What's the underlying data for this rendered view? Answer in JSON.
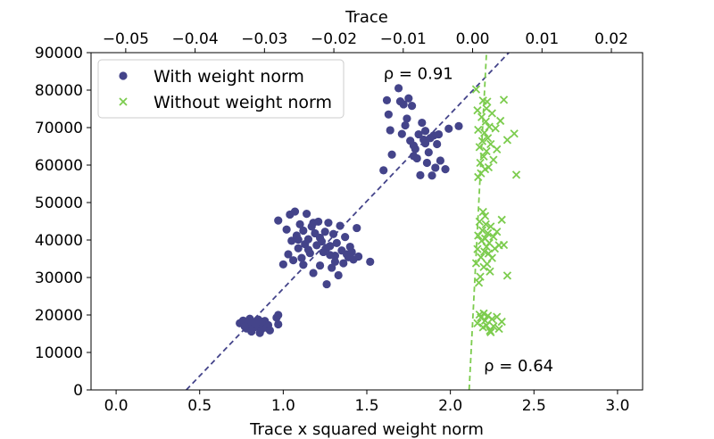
{
  "chart_data": {
    "type": "scatter",
    "xlabel": "Trace x squared weight norm",
    "x2label": "Trace",
    "ylabel": "",
    "xlim": [
      -0.15,
      3.15
    ],
    "x2lim": [
      -0.055,
      0.0245
    ],
    "ylim": [
      0,
      90000
    ],
    "xticks": [
      0.0,
      0.5,
      1.0,
      1.5,
      2.0,
      2.5,
      3.0
    ],
    "xtick_labels": [
      "0.0",
      "0.5",
      "1.0",
      "1.5",
      "2.0",
      "2.5",
      "3.0"
    ],
    "x2ticks": [
      -0.05,
      -0.04,
      -0.03,
      -0.02,
      -0.01,
      0.0,
      0.01,
      0.02
    ],
    "x2tick_labels": [
      "−0.05",
      "−0.04",
      "−0.03",
      "−0.02",
      "−0.01",
      "0.00",
      "0.01",
      "0.02"
    ],
    "yticks": [
      0,
      10000,
      20000,
      30000,
      40000,
      50000,
      60000,
      70000,
      80000,
      90000
    ],
    "ytick_labels": [
      "0",
      "10000",
      "20000",
      "30000",
      "40000",
      "50000",
      "60000",
      "70000",
      "80000",
      "90000"
    ],
    "grid": false,
    "legend_position": "top-left",
    "series": [
      {
        "name": "With weight norm",
        "marker": "circle",
        "axis": "bottom",
        "color": "#44448a",
        "points": [
          [
            0.74,
            17800
          ],
          [
            0.76,
            18500
          ],
          [
            0.78,
            16400
          ],
          [
            0.79,
            17200
          ],
          [
            0.8,
            19000
          ],
          [
            0.81,
            15600
          ],
          [
            0.82,
            18100
          ],
          [
            0.83,
            16800
          ],
          [
            0.84,
            17500
          ],
          [
            0.85,
            18800
          ],
          [
            0.86,
            15200
          ],
          [
            0.87,
            16200
          ],
          [
            0.88,
            17000
          ],
          [
            0.89,
            18400
          ],
          [
            0.9,
            16600
          ],
          [
            0.91,
            17300
          ],
          [
            0.92,
            15900
          ],
          [
            0.83,
            17900
          ],
          [
            0.77,
            16900
          ],
          [
            0.87,
            18200
          ],
          [
            0.97,
            20000
          ],
          [
            0.97,
            17500
          ],
          [
            0.96,
            19300
          ],
          [
            0.97,
            45200
          ],
          [
            1.0,
            33500
          ],
          [
            1.02,
            42800
          ],
          [
            1.03,
            36200
          ],
          [
            1.04,
            46800
          ],
          [
            1.05,
            39800
          ],
          [
            1.06,
            34600
          ],
          [
            1.07,
            47600
          ],
          [
            1.08,
            41200
          ],
          [
            1.09,
            37800
          ],
          [
            1.1,
            44200
          ],
          [
            1.11,
            35200
          ],
          [
            1.12,
            42500
          ],
          [
            1.13,
            38900
          ],
          [
            1.14,
            47000
          ],
          [
            1.15,
            40200
          ],
          [
            1.16,
            36500
          ],
          [
            1.17,
            43600
          ],
          [
            1.18,
            31200
          ],
          [
            1.19,
            41800
          ],
          [
            1.2,
            38600
          ],
          [
            1.21,
            44900
          ],
          [
            1.22,
            33200
          ],
          [
            1.23,
            39600
          ],
          [
            1.24,
            36800
          ],
          [
            1.25,
            42200
          ],
          [
            1.26,
            28200
          ],
          [
            1.27,
            44600
          ],
          [
            1.28,
            38400
          ],
          [
            1.29,
            32600
          ],
          [
            1.3,
            41600
          ],
          [
            1.31,
            35800
          ],
          [
            1.32,
            39200
          ],
          [
            1.33,
            30600
          ],
          [
            1.34,
            43800
          ],
          [
            1.35,
            37200
          ],
          [
            1.36,
            33800
          ],
          [
            1.37,
            40800
          ],
          [
            1.38,
            36200
          ],
          [
            1.39,
            35400
          ],
          [
            1.4,
            38200
          ],
          [
            1.41,
            36800
          ],
          [
            1.42,
            34800
          ],
          [
            1.44,
            43200
          ],
          [
            1.45,
            35600
          ],
          [
            1.52,
            34200
          ],
          [
            1.12,
            33400
          ],
          [
            1.15,
            37400
          ],
          [
            1.22,
            40600
          ],
          [
            1.28,
            36000
          ],
          [
            1.18,
            44600
          ],
          [
            1.26,
            37900
          ],
          [
            1.09,
            40100
          ],
          [
            1.31,
            34200
          ],
          [
            1.6,
            58600
          ],
          [
            1.62,
            77300
          ],
          [
            1.63,
            73500
          ],
          [
            1.64,
            69300
          ],
          [
            1.65,
            62800
          ],
          [
            1.69,
            80500
          ],
          [
            1.7,
            77000
          ],
          [
            1.71,
            68300
          ],
          [
            1.72,
            76200
          ],
          [
            1.73,
            70600
          ],
          [
            1.74,
            72400
          ],
          [
            1.75,
            77800
          ],
          [
            1.76,
            66500
          ],
          [
            1.77,
            75800
          ],
          [
            1.78,
            65200
          ],
          [
            1.79,
            64300
          ],
          [
            1.8,
            61800
          ],
          [
            1.81,
            68200
          ],
          [
            1.82,
            57300
          ],
          [
            1.83,
            71300
          ],
          [
            1.84,
            66800
          ],
          [
            1.85,
            69100
          ],
          [
            1.86,
            60600
          ],
          [
            1.87,
            63400
          ],
          [
            1.88,
            67200
          ],
          [
            1.89,
            57200
          ],
          [
            1.9,
            67900
          ],
          [
            1.91,
            59300
          ],
          [
            1.92,
            65600
          ],
          [
            1.93,
            68200
          ],
          [
            1.94,
            61200
          ],
          [
            1.97,
            58900
          ],
          [
            1.99,
            69700
          ],
          [
            2.05,
            70400
          ],
          [
            1.78,
            62400
          ],
          [
            1.85,
            65800
          ]
        ]
      },
      {
        "name": "Without weight norm",
        "marker": "x",
        "axis": "top",
        "color": "#7ccc4e",
        "points": [
          [
            0.0007,
            17800
          ],
          [
            0.001,
            20100
          ],
          [
            0.0012,
            19300
          ],
          [
            0.0015,
            16700
          ],
          [
            0.0018,
            18500
          ],
          [
            0.002,
            17200
          ],
          [
            0.0022,
            19800
          ],
          [
            0.0025,
            15800
          ],
          [
            0.0028,
            18900
          ],
          [
            0.003,
            17000
          ],
          [
            0.0035,
            19500
          ],
          [
            0.0038,
            16300
          ],
          [
            0.0042,
            18200
          ],
          [
            0.0016,
            20400
          ],
          [
            0.0026,
            15400
          ],
          [
            0.0005,
            33800
          ],
          [
            0.0007,
            37600
          ],
          [
            0.0008,
            41200
          ],
          [
            0.001,
            44900
          ],
          [
            0.0011,
            30200
          ],
          [
            0.0012,
            35400
          ],
          [
            0.0013,
            39800
          ],
          [
            0.0014,
            42600
          ],
          [
            0.0015,
            47500
          ],
          [
            0.0016,
            32800
          ],
          [
            0.0017,
            36900
          ],
          [
            0.0018,
            40400
          ],
          [
            0.0019,
            44200
          ],
          [
            0.002,
            38200
          ],
          [
            0.0021,
            33600
          ],
          [
            0.0022,
            41800
          ],
          [
            0.0023,
            36400
          ],
          [
            0.0024,
            39200
          ],
          [
            0.0026,
            43600
          ],
          [
            0.0028,
            35200
          ],
          [
            0.003,
            40900
          ],
          [
            0.0032,
            37700
          ],
          [
            0.0035,
            42200
          ],
          [
            0.0038,
            38600
          ],
          [
            0.0042,
            45400
          ],
          [
            0.0045,
            38700
          ],
          [
            0.005,
            30500
          ],
          [
            0.0009,
            28600
          ],
          [
            0.0018,
            46400
          ],
          [
            0.0025,
            31600
          ],
          [
            0.0005,
            80200
          ],
          [
            0.0007,
            74600
          ],
          [
            0.0008,
            69400
          ],
          [
            0.001,
            64800
          ],
          [
            0.0011,
            60600
          ],
          [
            0.0012,
            57800
          ],
          [
            0.0013,
            72800
          ],
          [
            0.0014,
            66400
          ],
          [
            0.0015,
            77200
          ],
          [
            0.0016,
            62300
          ],
          [
            0.0017,
            68600
          ],
          [
            0.0018,
            58900
          ],
          [
            0.0019,
            71600
          ],
          [
            0.002,
            63700
          ],
          [
            0.0021,
            76900
          ],
          [
            0.0022,
            67200
          ],
          [
            0.0023,
            59400
          ],
          [
            0.0024,
            70200
          ],
          [
            0.0026,
            65600
          ],
          [
            0.0028,
            73800
          ],
          [
            0.003,
            61400
          ],
          [
            0.0033,
            69800
          ],
          [
            0.0035,
            64200
          ],
          [
            0.004,
            71800
          ],
          [
            0.0045,
            77400
          ],
          [
            0.005,
            66700
          ],
          [
            0.006,
            68400
          ],
          [
            0.0063,
            57400
          ],
          [
            0.0008,
            56800
          ],
          [
            0.002,
            75100
          ]
        ]
      }
    ],
    "fit_lines": [
      {
        "series": "With weight norm",
        "axis": "bottom",
        "style": "dashed",
        "color": "#44448a",
        "from": [
          0.42,
          0
        ],
        "to": [
          2.35,
          90000
        ]
      },
      {
        "series": "Without weight norm",
        "axis": "top",
        "style": "dashed",
        "color": "#7ccc4e",
        "from": [
          -0.0005,
          0
        ],
        "to": [
          0.002,
          90000
        ]
      }
    ],
    "annotations": [
      {
        "text": "ρ = 0.91",
        "x": 1.6,
        "y": 83000
      },
      {
        "text": "ρ = 0.64",
        "x": 2.2,
        "y": 5000
      }
    ]
  }
}
